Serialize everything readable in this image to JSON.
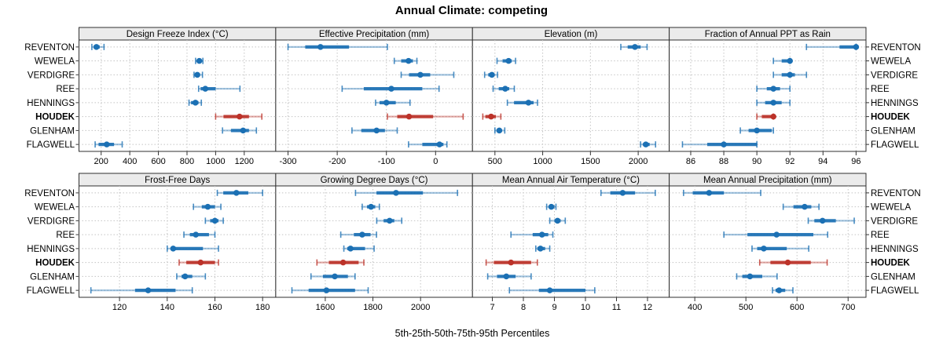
{
  "title": "Annual Climate: competing",
  "caption": "5th-25th-50th-75th-95th Percentiles",
  "colors": {
    "series": "#1B70B4",
    "highlight": "#BC3229",
    "strip_bg": "#EBEBEB",
    "panel_border": "#2F2F2F",
    "grid": "#C4C4C4",
    "text": "#000000"
  },
  "categories": [
    "REVENTON",
    "WEWELA",
    "VERDIGRE",
    "REE",
    "HENNINGS",
    "HOUDEK",
    "GLENHAM",
    "FLAGWELL"
  ],
  "highlight_category": "HOUDEK",
  "chart_data": {
    "type": "dotplot",
    "note": "values per category are [5th,25th,50th,75th,95th] percentiles",
    "percentiles": [
      "5th",
      "25th",
      "50th",
      "75th",
      "95th"
    ],
    "layout": "2 rows x 4 cols",
    "panels": [
      {
        "title": "Design Freeze Index (°C)",
        "xlim": [
          45,
          1420
        ],
        "ticks": [
          200,
          400,
          600,
          800,
          1000,
          1200
        ],
        "values": [
          [
            135,
            148,
            167,
            190,
            220
          ],
          [
            860,
            872,
            886,
            900,
            911
          ],
          [
            849,
            860,
            872,
            890,
            908
          ],
          [
            881,
            895,
            928,
            1000,
            1170
          ],
          [
            814,
            828,
            859,
            880,
            900
          ],
          [
            1000,
            1055,
            1167,
            1233,
            1323
          ],
          [
            1048,
            1107,
            1192,
            1233,
            1285
          ],
          [
            158,
            182,
            239,
            290,
            347
          ]
        ]
      },
      {
        "title": "Effective Precipitation (mm)",
        "xlim": [
          -325,
          75
        ],
        "ticks": [
          -300,
          -200,
          -100,
          0
        ],
        "values": [
          [
            -300,
            -265,
            -234,
            -176,
            -98
          ],
          [
            -84,
            -70,
            -55,
            -46,
            -38
          ],
          [
            -70,
            -54,
            -31,
            -11,
            37
          ],
          [
            -190,
            -146,
            -90,
            -27,
            7
          ],
          [
            -122,
            -114,
            -100,
            -81,
            -52
          ],
          [
            -98,
            -78,
            -54,
            -5,
            56
          ],
          [
            -170,
            -151,
            -120,
            -103,
            -78
          ],
          [
            -55,
            -27,
            8,
            16,
            23
          ]
        ]
      },
      {
        "title": "Elevation (m)",
        "xlim": [
          265,
          2325
        ],
        "ticks": [
          500,
          1000,
          1500,
          2000
        ],
        "values": [
          [
            1818,
            1890,
            1966,
            2026,
            2093
          ],
          [
            522,
            580,
            643,
            676,
            716
          ],
          [
            392,
            430,
            468,
            495,
            527
          ],
          [
            481,
            540,
            608,
            650,
            703
          ],
          [
            630,
            700,
            851,
            905,
            946
          ],
          [
            373,
            400,
            460,
            510,
            562
          ],
          [
            500,
            520,
            546,
            570,
            603
          ],
          [
            2025,
            2050,
            2080,
            2120,
            2182
          ]
        ]
      },
      {
        "title": "Fraction of Annual PPT as Rain",
        "xlim": [
          84.7,
          96.6
        ],
        "ticks": [
          86,
          88,
          90,
          92,
          94,
          96
        ],
        "values": [
          [
            93,
            95,
            96,
            96,
            96
          ],
          [
            91,
            91.5,
            92,
            92,
            92
          ],
          [
            91,
            91.5,
            92,
            92.3,
            93
          ],
          [
            90,
            90.6,
            91,
            91.4,
            92
          ],
          [
            90,
            90.5,
            91,
            91.5,
            92
          ],
          [
            90,
            90.3,
            91,
            91,
            91
          ],
          [
            89,
            89.5,
            90,
            90.9,
            91
          ],
          [
            85.5,
            87,
            88,
            90,
            90
          ]
        ]
      },
      {
        "title": "Frost-Free Days",
        "xlim": [
          103,
          185.5
        ],
        "ticks": [
          120,
          140,
          160,
          180
        ],
        "values": [
          [
            161,
            163.5,
            169,
            174,
            180
          ],
          [
            151,
            154.5,
            157,
            160,
            162.5
          ],
          [
            156,
            158,
            160,
            161.5,
            163.5
          ],
          [
            147,
            149.5,
            152,
            157.5,
            160
          ],
          [
            140,
            141.5,
            142.5,
            155,
            161.5
          ],
          [
            145,
            148,
            154,
            160,
            161.5
          ],
          [
            144,
            146,
            147.5,
            150.5,
            156
          ],
          [
            108,
            126.5,
            132,
            143.5,
            150.5
          ]
        ]
      },
      {
        "title": "Growing Degree Days (°C)",
        "xlim": [
          1392,
          2218
        ],
        "ticks": [
          1600,
          1800,
          2000
        ],
        "values": [
          [
            1727,
            1815,
            1897,
            2010,
            2155
          ],
          [
            1755,
            1775,
            1792,
            1810,
            1827
          ],
          [
            1816,
            1845,
            1870,
            1890,
            1921
          ],
          [
            1665,
            1720,
            1755,
            1790,
            1815
          ],
          [
            1678,
            1692,
            1706,
            1767,
            1805
          ],
          [
            1565,
            1615,
            1675,
            1740,
            1762
          ],
          [
            1540,
            1590,
            1640,
            1695,
            1725
          ],
          [
            1460,
            1530,
            1605,
            1725,
            1780
          ]
        ]
      },
      {
        "title": "Mean Annual Air Temperature (°C)",
        "xlim": [
          6.36,
          12.7
        ],
        "ticks": [
          7,
          8,
          9,
          10,
          11,
          12
        ],
        "values": [
          [
            10.5,
            10.8,
            11.2,
            11.6,
            12.25
          ],
          [
            8.75,
            8.82,
            8.9,
            9.0,
            9.05
          ],
          [
            8.85,
            9.0,
            9.1,
            9.2,
            9.35
          ],
          [
            7.6,
            8.3,
            8.6,
            8.8,
            8.95
          ],
          [
            8.4,
            8.45,
            8.55,
            8.7,
            8.85
          ],
          [
            6.8,
            7.05,
            7.6,
            8.25,
            8.45
          ],
          [
            6.85,
            7.15,
            7.45,
            7.75,
            8.25
          ],
          [
            7.55,
            8.5,
            8.85,
            10.0,
            10.3
          ]
        ]
      },
      {
        "title": "Mean Annual Precipitation (mm)",
        "xlim": [
          350,
          735
        ],
        "ticks": [
          400,
          500,
          600,
          700
        ],
        "values": [
          [
            378,
            396,
            428,
            457,
            529
          ],
          [
            573,
            593,
            615,
            628,
            643
          ],
          [
            622,
            634,
            650,
            676,
            712
          ],
          [
            457,
            503,
            560,
            632,
            660
          ],
          [
            512,
            522,
            535,
            580,
            623
          ],
          [
            527,
            548,
            582,
            627,
            659
          ],
          [
            482,
            493,
            508,
            532,
            561
          ],
          [
            552,
            558,
            565,
            577,
            592
          ]
        ]
      }
    ]
  }
}
